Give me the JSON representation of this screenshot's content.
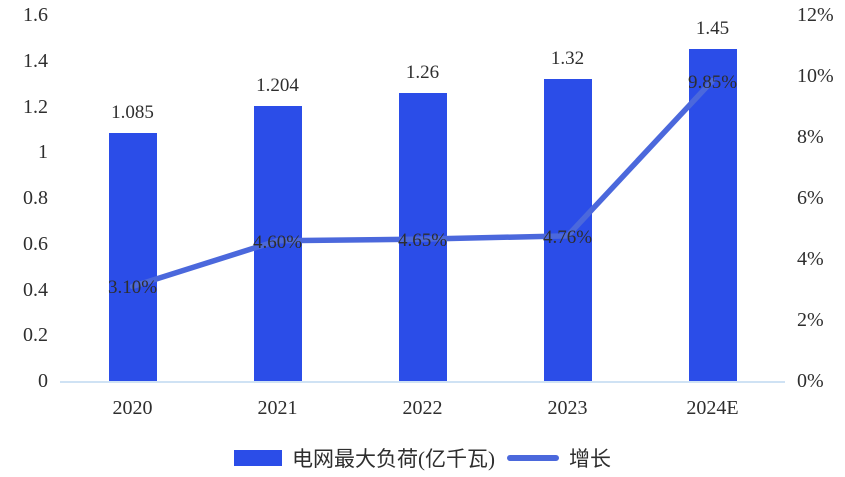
{
  "chart_data": {
    "type": "bar+line combo",
    "categories": [
      "2020",
      "2021",
      "2022",
      "2023",
      "2024E"
    ],
    "series": [
      {
        "name": "电网最大负荷(亿千瓦)",
        "type": "bar",
        "axis": "left",
        "values": [
          1.085,
          1.204,
          1.26,
          1.32,
          1.45
        ],
        "labels": [
          "1.085",
          "1.204",
          "1.26",
          "1.32",
          "1.45"
        ]
      },
      {
        "name": "增长",
        "type": "line",
        "axis": "right",
        "values": [
          3.1,
          4.6,
          4.65,
          4.76,
          9.85
        ],
        "labels": [
          "3.10%",
          "4.60%",
          "4.65%",
          "4.76%",
          "9.85%"
        ]
      }
    ],
    "left_axis": {
      "min": 0,
      "max": 1.6,
      "tick_values": [
        1.6,
        1.4,
        1.2,
        1,
        0.8,
        0.6,
        0.4,
        0.2,
        0
      ],
      "tick_labels": [
        "1.6",
        "1.4",
        "1.2",
        "1",
        "0.8",
        "0.6",
        "0.4",
        "0.2",
        "0"
      ]
    },
    "right_axis": {
      "min": 0,
      "max": 12,
      "tick_values": [
        12,
        10,
        8,
        6,
        4,
        2,
        0
      ],
      "tick_labels": [
        "12%",
        "10%",
        "8%",
        "6%",
        "4%",
        "2%",
        "0%"
      ]
    },
    "legend": [
      {
        "label": "电网最大负荷(亿千瓦)",
        "swatch": "bar"
      },
      {
        "label": "增长",
        "swatch": "line"
      }
    ],
    "grid": "off",
    "legend_position": "bottom-center",
    "colors": {
      "bar": "#2b4de8",
      "line": "#4b68dc",
      "axis_line": "#cfe2f4",
      "text": "#2e2e2e"
    }
  }
}
